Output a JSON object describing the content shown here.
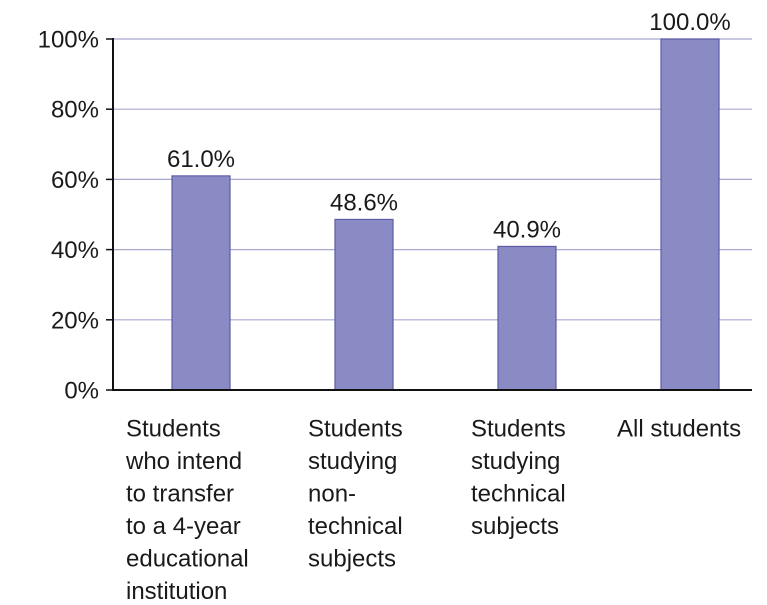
{
  "chart_data": {
    "type": "bar",
    "title": "",
    "xlabel": "",
    "ylabel": "",
    "ylim": [
      0,
      100
    ],
    "yticks": [
      "0%",
      "20%",
      "40%",
      "60%",
      "80%",
      "100%"
    ],
    "grid": true,
    "categories": [
      "Students who intend to transfer to a 4-year educational institution",
      "Students studying non-technical subjects",
      "Students studying technical subjects",
      "All students"
    ],
    "category_lines": [
      [
        "Students",
        "who intend",
        "to transfer",
        "to a 4-year",
        "educational",
        "institution"
      ],
      [
        "Students",
        "studying",
        "non-",
        "technical",
        "subjects"
      ],
      [
        "Students",
        "studying",
        "technical",
        "subjects"
      ],
      [
        "All students"
      ]
    ],
    "values": [
      61.0,
      48.6,
      40.9,
      100.0
    ],
    "data_labels": [
      "61.0%",
      "48.6%",
      "40.9%",
      "100.0%"
    ],
    "colors": {
      "bar_fill": "#8a8ac4",
      "bar_stroke": "#5c5ca8",
      "grid": "#a8a8d0",
      "axis": "#111111"
    }
  }
}
